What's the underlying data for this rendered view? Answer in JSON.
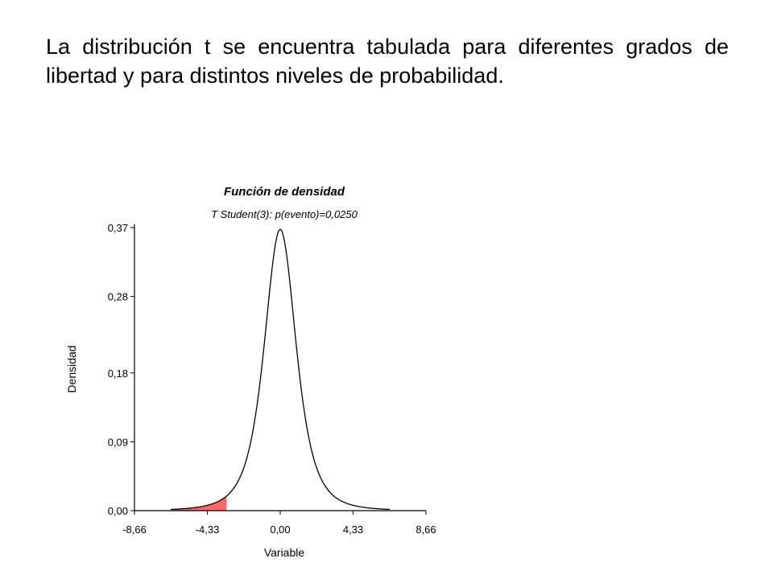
{
  "body_text": "La distribución t se encuentra tabulada para diferentes grados de libertad y para distintos niveles de probabilidad.",
  "colors": {
    "curve": "#000000",
    "shaded_tail": "#ff6b6b",
    "axis": "#000000"
  },
  "chart_data": {
    "type": "line",
    "title": "Función de densidad",
    "subtitle": "T Student(3): p(evento)=0,0250",
    "xlabel": "Variable",
    "ylabel": "Densidad",
    "xlim": [
      -8.66,
      8.66
    ],
    "ylim": [
      0,
      0.37
    ],
    "x_ticks": [
      -8.66,
      -4.33,
      0,
      4.33,
      8.66
    ],
    "x_tick_labels": [
      "-8,66",
      "-4,33",
      "0,00",
      "4,33",
      "8,66"
    ],
    "y_ticks": [
      0,
      0.09,
      0.18,
      0.28,
      0.37
    ],
    "y_tick_labels": [
      "0,00",
      "0,09",
      "0,18",
      "0,28",
      "0,37"
    ],
    "distribution": "Student t",
    "degrees_of_freedom": 3,
    "series": [
      {
        "x": [
          -6.5,
          -6,
          -5.5,
          -5,
          -4.5,
          -4,
          -3.5,
          -3,
          -2.5,
          -2,
          -1.5,
          -1,
          -0.5,
          0,
          0.5,
          1,
          1.5,
          2,
          2.5,
          3,
          3.5,
          4,
          4.5,
          5,
          5.5,
          6,
          6.5
        ],
        "y": [
          0.0018,
          0.0024,
          0.0032,
          0.0042,
          0.0057,
          0.008,
          0.0116,
          0.0175,
          0.0283,
          0.0651,
          0.1166,
          0.2067,
          0.3169,
          0.3676,
          0.3169,
          0.2067,
          0.1166,
          0.0651,
          0.0283,
          0.0175,
          0.0116,
          0.008,
          0.0057,
          0.0042,
          0.0032,
          0.0024,
          0.0018
        ]
      }
    ],
    "shaded_region": {
      "from": -6.5,
      "to": -3.18,
      "side": "left tail"
    }
  }
}
